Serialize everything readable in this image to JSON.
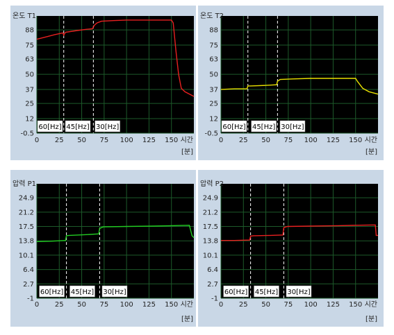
{
  "chart_data": [
    {
      "type": "line",
      "title": "온도 T1",
      "xlabel": "시간",
      "xunit": "[분]",
      "xlim": [
        0,
        175
      ],
      "xticks": [
        0,
        25,
        50,
        75,
        100,
        125,
        150
      ],
      "ylim": [
        -0.5,
        100
      ],
      "yticks": [
        -0.5,
        12,
        25,
        37,
        50,
        63,
        75,
        88
      ],
      "grid": true,
      "phase_boundaries": [
        30,
        63
      ],
      "phase_labels": [
        {
          "text": "60[Hz]",
          "x": 0
        },
        {
          "text": "45[Hz]",
          "x": 31
        },
        {
          "text": "30[Hz]",
          "x": 64
        }
      ],
      "series": [
        {
          "color": "#e82020",
          "x": [
            0,
            10,
            20,
            29,
            30,
            32,
            45,
            55,
            62,
            64,
            67,
            72,
            85,
            100,
            120,
            140,
            150,
            152,
            155,
            158,
            161,
            165,
            175
          ],
          "y": [
            80,
            82,
            84,
            85.5,
            83.5,
            86,
            87.5,
            88.5,
            89,
            92,
            94,
            95.5,
            96,
            96.5,
            96.5,
            96.5,
            96.5,
            94,
            70,
            50,
            38,
            35,
            31
          ]
        }
      ]
    },
    {
      "type": "line",
      "title": "온도 T2",
      "xlabel": "시간",
      "xunit": "[분]",
      "xlim": [
        0,
        175
      ],
      "xticks": [
        0,
        25,
        50,
        75,
        100,
        125,
        150
      ],
      "ylim": [
        -0.5,
        100
      ],
      "yticks": [
        -0.5,
        12,
        25,
        37,
        50,
        63,
        75,
        88
      ],
      "grid": true,
      "phase_boundaries": [
        30,
        63
      ],
      "phase_labels": [
        {
          "text": "60[Hz]",
          "x": 0
        },
        {
          "text": "45[Hz]",
          "x": 33
        },
        {
          "text": "30[Hz]",
          "x": 65
        }
      ],
      "series": [
        {
          "color": "#e8e000",
          "x": [
            0,
            15,
            29,
            30,
            33,
            50,
            62,
            63,
            66,
            80,
            100,
            120,
            140,
            150,
            152,
            158,
            165,
            175
          ],
          "y": [
            37,
            37.5,
            37.5,
            40,
            40,
            40.5,
            41,
            44,
            45.5,
            46,
            46.5,
            46.5,
            46.5,
            46.5,
            44,
            38,
            35,
            33
          ]
        }
      ]
    },
    {
      "type": "line",
      "title": "압력 P1",
      "xlabel": "시간",
      "xunit": "[분]",
      "xlim": [
        0,
        175
      ],
      "xticks": [
        0,
        25,
        50,
        75,
        100,
        125,
        150
      ],
      "ylim": [
        -1,
        28.5
      ],
      "yticks": [
        -1,
        2.7,
        6.4,
        10.1,
        13.8,
        17.5,
        21.2,
        24.9
      ],
      "grid": true,
      "phase_boundaries": [
        33,
        70
      ],
      "phase_labels": [
        {
          "text": "60[Hz]",
          "x": 2
        },
        {
          "text": "45[Hz]",
          "x": 36
        },
        {
          "text": "30[Hz]",
          "x": 72
        }
      ],
      "series": [
        {
          "color": "#22cc22",
          "x": [
            0,
            15,
            32,
            33,
            36,
            55,
            69,
            70,
            74,
            100,
            130,
            150,
            170,
            173,
            175
          ],
          "y": [
            13.6,
            13.7,
            13.9,
            15.1,
            15.2,
            15.4,
            15.6,
            17.0,
            17.4,
            17.5,
            17.6,
            17.7,
            17.8,
            15.1,
            14.6
          ]
        }
      ]
    },
    {
      "type": "line",
      "title": "압력 P2",
      "xlabel": "시간",
      "xunit": "[분]",
      "xlim": [
        0,
        175
      ],
      "xticks": [
        0,
        25,
        50,
        75,
        100,
        125,
        150
      ],
      "ylim": [
        -1,
        28.5
      ],
      "yticks": [
        -1,
        2.7,
        6.4,
        10.1,
        13.8,
        17.5,
        21.2,
        24.9
      ],
      "grid": true,
      "phase_boundaries": [
        33,
        70
      ],
      "phase_labels": [
        {
          "text": "60[Hz]",
          "x": 2
        },
        {
          "text": "45[Hz]",
          "x": 36
        },
        {
          "text": "30[Hz]",
          "x": 72
        }
      ],
      "series": [
        {
          "color": "#e82020",
          "x": [
            0,
            15,
            32,
            33,
            36,
            55,
            69,
            70,
            74,
            100,
            130,
            150,
            172,
            173,
            175
          ],
          "y": [
            13.9,
            13.9,
            14.0,
            15.0,
            15.1,
            15.2,
            15.3,
            17.2,
            17.5,
            17.6,
            17.7,
            17.8,
            17.9,
            15.2,
            15.2
          ]
        }
      ]
    }
  ]
}
